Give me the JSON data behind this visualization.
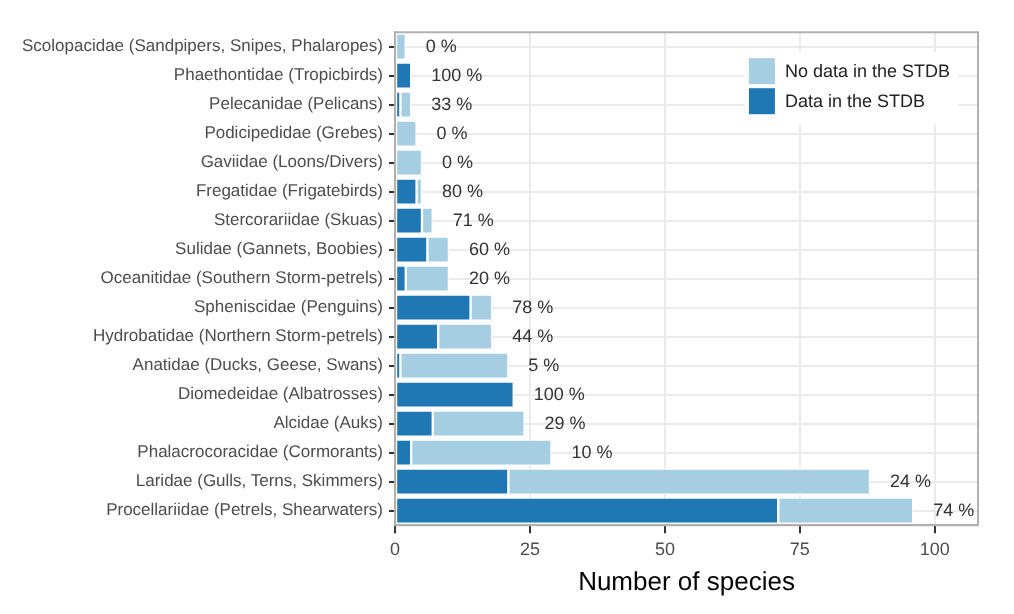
{
  "chart_data": {
    "type": "bar",
    "orientation": "horizontal",
    "stacked": true,
    "xlabel": "Number of species",
    "categories": [
      "Scolopacidae (Sandpipers, Snipes, Phalaropes)",
      "Phaethontidae (Tropicbirds)",
      "Pelecanidae (Pelicans)",
      "Podicipedidae (Grebes)",
      "Gaviidae (Loons/Divers)",
      "Fregatidae (Frigatebirds)",
      "Stercorariidae (Skuas)",
      "Sulidae (Gannets, Boobies)",
      "Oceanitidae (Southern Storm-petrels)",
      "Spheniscidae (Penguins)",
      "Hydrobatidae (Northern Storm-petrels)",
      "Anatidae (Ducks, Geese, Swans)",
      "Diomedeidae (Albatrosses)",
      "Alcidae (Auks)",
      "Phalacrocoracidae (Cormorants)",
      "Laridae (Gulls, Terns, Skimmers)",
      "Procellariidae (Petrels, Shearwaters)"
    ],
    "series": [
      {
        "name": "Data in the STDB",
        "color": "#1f78b4",
        "values": [
          0,
          3,
          1,
          0,
          0,
          4,
          5,
          6,
          2,
          14,
          8,
          1,
          22,
          7,
          3,
          21,
          71
        ]
      },
      {
        "name": "No data in the STDB",
        "color": "#a6cee3",
        "values": [
          2,
          0,
          2,
          4,
          5,
          1,
          2,
          4,
          8,
          4,
          10,
          20,
          0,
          17,
          26,
          67,
          25
        ]
      }
    ],
    "annotations": [
      {
        "text": "0 %",
        "x": 2,
        "y": "Scolopacidae (Sandpipers, Snipes, Phalaropes)"
      },
      {
        "text": "100 %",
        "x": 3,
        "y": "Phaethontidae (Tropicbirds)"
      },
      {
        "text": "33 %",
        "x": 3,
        "y": "Pelecanidae (Pelicans)"
      },
      {
        "text": "0 %",
        "x": 4,
        "y": "Podicipedidae (Grebes)"
      },
      {
        "text": "0 %",
        "x": 5,
        "y": "Gaviidae (Loons/Divers)"
      },
      {
        "text": "80 %",
        "x": 5,
        "y": "Fregatidae (Frigatebirds)"
      },
      {
        "text": "71 %",
        "x": 7,
        "y": "Stercorariidae (Skuas)"
      },
      {
        "text": "60 %",
        "x": 10,
        "y": "Sulidae (Gannets, Boobies)"
      },
      {
        "text": "20 %",
        "x": 10,
        "y": "Oceanitidae (Southern Storm-petrels)"
      },
      {
        "text": "78 %",
        "x": 18,
        "y": "Spheniscidae (Penguins)"
      },
      {
        "text": "44 %",
        "x": 18,
        "y": "Hydrobatidae (Northern Storm-petrels)"
      },
      {
        "text": "5 %",
        "x": 21,
        "y": "Anatidae (Ducks, Geese, Swans)"
      },
      {
        "text": "100 %",
        "x": 22,
        "y": "Diomedeidae (Albatrosses)"
      },
      {
        "text": "29 %",
        "x": 24,
        "y": "Alcidae (Auks)"
      },
      {
        "text": "10 %",
        "x": 29,
        "y": "Phalacrocoracidae (Cormorants)"
      },
      {
        "text": "24 %",
        "x": 88,
        "y": "Laridae (Gulls, Terns, Skimmers)"
      },
      {
        "text": "74 %",
        "x": 96,
        "y": "Procellariidae (Petrels, Shearwaters)"
      }
    ],
    "xlim": [
      0,
      108
    ],
    "xticks": [
      0,
      25,
      50,
      75,
      100
    ],
    "grid": true,
    "legend": "top right"
  }
}
